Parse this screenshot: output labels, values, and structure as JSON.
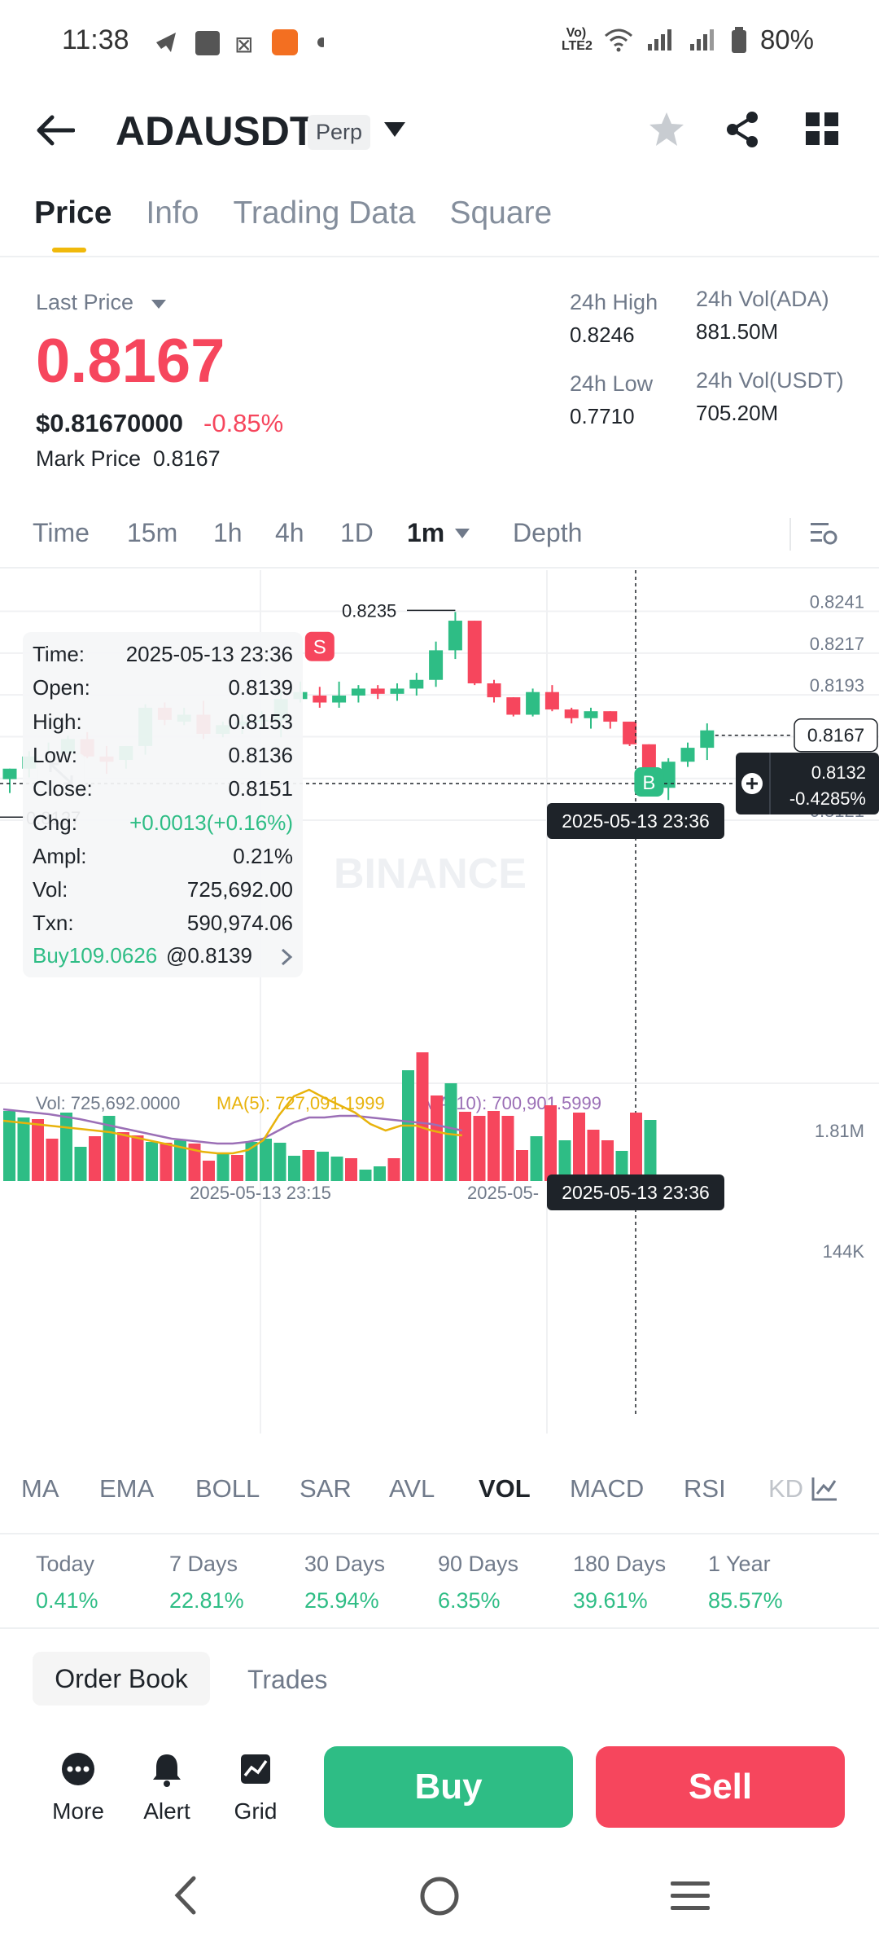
{
  "status_bar": {
    "time": "11:38",
    "net_label": "Vo) LTE2",
    "battery": "80%",
    "colors": {
      "icons": "#333333"
    }
  },
  "header": {
    "symbol": "ADAUSDT",
    "contract_tag": "Perp"
  },
  "tabs": [
    "Price",
    "Info",
    "Trading Data",
    "Square"
  ],
  "price": {
    "last_price_label": "Last Price",
    "last_price": "0.8167",
    "usd_price": "$0.81670000",
    "change_pct": "-0.85%",
    "mark_price_label": "Mark Price",
    "mark_price": "0.8167",
    "high_label": "24h High",
    "high": "0.8246",
    "low_label": "24h Low",
    "low": "0.7710",
    "vol_ada_label": "24h Vol(ADA)",
    "vol_ada": "881.50M",
    "vol_usdt_label": "24h Vol(USDT)",
    "vol_usdt": "705.20M"
  },
  "intervals": {
    "items": [
      "Time",
      "15m",
      "1h",
      "4h",
      "1D",
      "1m",
      "Depth"
    ],
    "active": "1m"
  },
  "tooltip": {
    "rows": [
      {
        "key": "Time:",
        "value": "2025-05-13 23:36"
      },
      {
        "key": "Open:",
        "value": "0.8139"
      },
      {
        "key": "High:",
        "value": "0.8153"
      },
      {
        "key": "Low:",
        "value": "0.8136"
      },
      {
        "key": "Close:",
        "value": "0.8151"
      },
      {
        "key": "Chg:",
        "value": "+0.0013(+0.16%)"
      },
      {
        "key": "Ampl:",
        "value": "0.21%"
      },
      {
        "key": "Vol:",
        "value": "725,692.00"
      },
      {
        "key": "Txn:",
        "value": "590,974.06"
      }
    ],
    "trade_side": "Buy109.0626",
    "trade_price": "@0.8139"
  },
  "chart_data": {
    "type": "candlestick",
    "y_ticks": [
      "0.8241",
      "0.8217",
      "0.8193",
      "0.8169",
      "0.8145",
      "0.8121"
    ],
    "ylim": [
      0.8114,
      0.8245
    ],
    "max_label": "0.8235",
    "min_label": "0.8127",
    "current_price_label": "0.8167",
    "crosshair_price": "0.8132",
    "crosshair_change": "-0.4285%",
    "crosshair_time": "2025-05-13 23:36",
    "watermark": "BINANCE",
    "markers": [
      {
        "label": "S",
        "candle": 16,
        "color": "#f6465d"
      },
      {
        "label": "B",
        "candle": 33,
        "color": "#2ebd85"
      }
    ],
    "candles": [
      {
        "o": 0.8139,
        "h": 0.8145,
        "l": 0.8131,
        "c": 0.8145
      },
      {
        "o": 0.8145,
        "h": 0.8155,
        "l": 0.814,
        "c": 0.8152
      },
      {
        "o": 0.8152,
        "h": 0.816,
        "l": 0.8144,
        "c": 0.8153
      },
      {
        "o": 0.8152,
        "h": 0.8164,
        "l": 0.8148,
        "c": 0.8162
      },
      {
        "o": 0.8162,
        "h": 0.8166,
        "l": 0.8151,
        "c": 0.8152
      },
      {
        "o": 0.8152,
        "h": 0.8158,
        "l": 0.8142,
        "c": 0.8149
      },
      {
        "o": 0.815,
        "h": 0.8158,
        "l": 0.8145,
        "c": 0.8158
      },
      {
        "o": 0.8158,
        "h": 0.8182,
        "l": 0.8153,
        "c": 0.818
      },
      {
        "o": 0.818,
        "h": 0.8183,
        "l": 0.817,
        "c": 0.8173
      },
      {
        "o": 0.8172,
        "h": 0.818,
        "l": 0.817,
        "c": 0.8176
      },
      {
        "o": 0.8176,
        "h": 0.8184,
        "l": 0.8162,
        "c": 0.8165
      },
      {
        "o": 0.8165,
        "h": 0.8172,
        "l": 0.8163,
        "c": 0.817
      },
      {
        "o": 0.817,
        "h": 0.8176,
        "l": 0.8165,
        "c": 0.8172
      },
      {
        "o": 0.8172,
        "h": 0.8178,
        "l": 0.8168,
        "c": 0.8173
      },
      {
        "o": 0.8173,
        "h": 0.819,
        "l": 0.8163,
        "c": 0.8185
      },
      {
        "o": 0.8185,
        "h": 0.8195,
        "l": 0.8183,
        "c": 0.8189
      },
      {
        "o": 0.8187,
        "h": 0.8192,
        "l": 0.818,
        "c": 0.8183
      },
      {
        "o": 0.8183,
        "h": 0.8195,
        "l": 0.818,
        "c": 0.8187
      },
      {
        "o": 0.8187,
        "h": 0.8193,
        "l": 0.8183,
        "c": 0.8191
      },
      {
        "o": 0.8191,
        "h": 0.8193,
        "l": 0.8185,
        "c": 0.8188
      },
      {
        "o": 0.8188,
        "h": 0.8194,
        "l": 0.8184,
        "c": 0.8191
      },
      {
        "o": 0.8191,
        "h": 0.82,
        "l": 0.8187,
        "c": 0.8196
      },
      {
        "o": 0.8196,
        "h": 0.8218,
        "l": 0.8192,
        "c": 0.8213
      },
      {
        "o": 0.8213,
        "h": 0.8235,
        "l": 0.8208,
        "c": 0.823
      },
      {
        "o": 0.823,
        "h": 0.823,
        "l": 0.8193,
        "c": 0.8194
      },
      {
        "o": 0.8194,
        "h": 0.8196,
        "l": 0.8183,
        "c": 0.8186
      },
      {
        "o": 0.8186,
        "h": 0.8186,
        "l": 0.8175,
        "c": 0.8176
      },
      {
        "o": 0.8176,
        "h": 0.8191,
        "l": 0.8175,
        "c": 0.8189
      },
      {
        "o": 0.8189,
        "h": 0.8193,
        "l": 0.8178,
        "c": 0.8179
      },
      {
        "o": 0.8179,
        "h": 0.818,
        "l": 0.8171,
        "c": 0.8174
      },
      {
        "o": 0.8174,
        "h": 0.818,
        "l": 0.8168,
        "c": 0.8178
      },
      {
        "o": 0.8178,
        "h": 0.8178,
        "l": 0.8168,
        "c": 0.8172
      },
      {
        "o": 0.8172,
        "h": 0.8172,
        "l": 0.8158,
        "c": 0.8159
      },
      {
        "o": 0.8159,
        "h": 0.8159,
        "l": 0.8132,
        "c": 0.8134
      },
      {
        "o": 0.8134,
        "h": 0.8151,
        "l": 0.8127,
        "c": 0.8149
      },
      {
        "o": 0.8149,
        "h": 0.816,
        "l": 0.8146,
        "c": 0.8157
      },
      {
        "o": 0.8157,
        "h": 0.8171,
        "l": 0.815,
        "c": 0.8167
      }
    ],
    "volume": {
      "label": "Vol: 725,692.0000",
      "ma5_label": "MA(5): 727,091.1999",
      "ma10_label": "MA(10): 700,901.5999",
      "y_ticks": [
        "1.81M",
        "144K"
      ],
      "values": [
        0.86,
        0.78,
        0.76,
        0.52,
        0.84,
        0.42,
        0.55,
        0.8,
        0.6,
        0.56,
        0.48,
        0.47,
        0.5,
        0.46,
        0.25,
        0.33,
        0.32,
        0.48,
        0.52,
        0.47,
        0.31,
        0.38,
        0.36,
        0.3,
        0.28,
        0.14,
        0.18,
        0.28,
        1.36,
        1.58,
        1.05,
        1.2,
        0.85,
        0.8,
        0.86,
        0.8,
        0.38,
        0.55,
        0.93,
        0.5,
        0.84,
        0.63,
        0.5,
        0.37,
        0.84,
        0.75
      ],
      "dir": [
        "u",
        "u",
        "d",
        "d",
        "u",
        "u",
        "d",
        "u",
        "d",
        "d",
        "u",
        "d",
        "u",
        "d",
        "d",
        "u",
        "d",
        "u",
        "u",
        "u",
        "u",
        "d",
        "u",
        "u",
        "d",
        "u",
        "u",
        "d",
        "u",
        "d",
        "d",
        "u",
        "d",
        "d",
        "d",
        "d",
        "d",
        "u",
        "d",
        "u",
        "d",
        "d",
        "d",
        "u",
        "d",
        "u"
      ],
      "ma5": [
        0.74,
        0.72,
        0.7,
        0.68,
        0.66,
        0.64,
        0.62,
        0.6,
        0.56,
        0.52,
        0.48,
        0.44,
        0.4,
        0.36,
        0.34,
        0.34,
        0.38,
        0.5,
        0.8,
        1.04,
        1.12,
        1.02,
        0.93,
        0.84,
        0.7,
        0.62,
        0.68,
        0.68,
        0.62,
        0.58,
        0.56
      ],
      "ma10": [
        0.88,
        0.86,
        0.84,
        0.82,
        0.79,
        0.76,
        0.72,
        0.68,
        0.64,
        0.6,
        0.56,
        0.52,
        0.5,
        0.48,
        0.46,
        0.46,
        0.48,
        0.52,
        0.62,
        0.72,
        0.78,
        0.78,
        0.8,
        0.8,
        0.78,
        0.76,
        0.74,
        0.72,
        0.7,
        0.66,
        0.62
      ],
      "x_ticks": [
        "2025-05-13 23:15",
        "2025-05-"
      ],
      "crosshair_time": "2025-05-13 23:36"
    }
  },
  "indicators": {
    "items": [
      "MA",
      "EMA",
      "BOLL",
      "SAR",
      "AVL",
      "VOL",
      "MACD",
      "RSI",
      "KD"
    ],
    "active": "VOL"
  },
  "performance": [
    {
      "label": "Today",
      "value": "0.41%"
    },
    {
      "label": "7 Days",
      "value": "22.81%"
    },
    {
      "label": "30 Days",
      "value": "25.94%"
    },
    {
      "label": "90 Days",
      "value": "6.35%"
    },
    {
      "label": "180 Days",
      "value": "39.61%"
    },
    {
      "label": "1 Year",
      "value": "85.57%"
    }
  ],
  "order_tabs": {
    "order_book": "Order Book",
    "trades": "Trades"
  },
  "actions": {
    "more": "More",
    "alert": "Alert",
    "grid": "Grid",
    "buy": "Buy",
    "sell": "Sell"
  },
  "colors": {
    "up": "#2ebd85",
    "down": "#f6465d",
    "accent": "#f0b90b",
    "ma5": "#e8b30c",
    "ma10": "#9b6fb6"
  }
}
